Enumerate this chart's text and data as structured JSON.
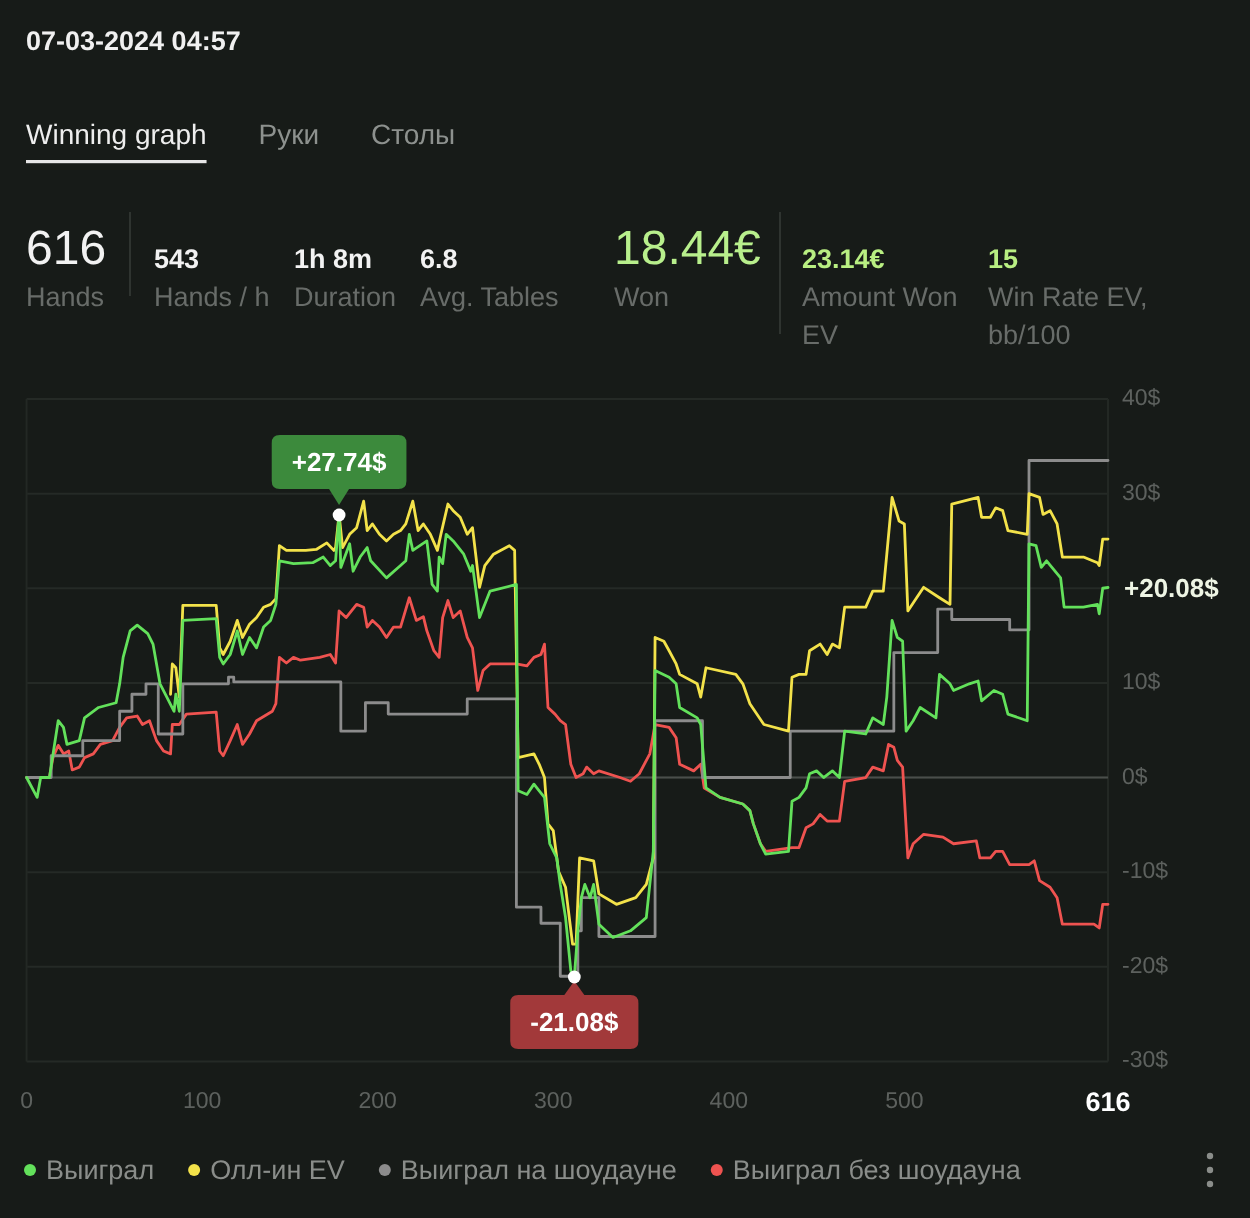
{
  "chart_data": {
    "type": "line",
    "title": "07-03-2024 04:57",
    "annotations": [
      "Winning graph",
      "Руки",
      "Столы",
      "616",
      "Hands",
      "543",
      "Hands / h",
      "1h 8m",
      "Duration",
      "6.8",
      "Avg. Tables",
      "18.44€",
      "Won",
      "23.14€",
      "Amount Won EV",
      "15",
      "Win Rate EV, bb/100",
      {
        "text": "+27.74$",
        "x": 178,
        "y": 27.74
      },
      {
        "text": "-21.08$",
        "x": 312,
        "y": -21.08
      },
      {
        "text": "+20.08$",
        "x": 616,
        "y": 20.08
      }
    ],
    "xlim": [
      0,
      616
    ],
    "xticks": [
      0,
      100,
      200,
      300,
      400,
      500,
      616
    ],
    "ylim": [
      -30,
      40
    ],
    "yticks": [
      {
        "value": -30,
        "label": "-30$"
      },
      {
        "value": -20,
        "label": "-20$"
      },
      {
        "value": -10,
        "label": "-10$"
      },
      {
        "value": 0,
        "label": "0$"
      },
      {
        "value": 10,
        "label": "10$"
      },
      {
        "value": 20,
        "label": null
      },
      {
        "value": 30,
        "label": "30$"
      },
      {
        "value": 40,
        "label": "40$"
      }
    ],
    "grid": "y",
    "legend": "bottom",
    "ref_lines": [
      {
        "axis": "y",
        "value": 0,
        "color": "#4a4e4b"
      }
    ],
    "series": [
      {
        "name": "Выиграл",
        "color": "#63e15b",
        "x": [
          0,
          6,
          8,
          13,
          18,
          21,
          23,
          30,
          33,
          41,
          51,
          53,
          55,
          59,
          63,
          69,
          72,
          76,
          79,
          84,
          85,
          87,
          89,
          108,
          110,
          112,
          116,
          120,
          123,
          127,
          131,
          135,
          139,
          142,
          144,
          152,
          163,
          169,
          173,
          176,
          178,
          179,
          184,
          186,
          190,
          194,
          196,
          205,
          213,
          216,
          218,
          220,
          228,
          231,
          234,
          235,
          237,
          239,
          243,
          249,
          253,
          254,
          256,
          258,
          261,
          264,
          279,
          280,
          285,
          289,
          292,
          295,
          298,
          302,
          304,
          307,
          310,
          312,
          314,
          316,
          318,
          321,
          323,
          326,
          334,
          344,
          353,
          357,
          358,
          366,
          370,
          372,
          382,
          384,
          387,
          395,
          408,
          412,
          414,
          418,
          421,
          434,
          436,
          440,
          444,
          446,
          450,
          454,
          459,
          463,
          466,
          478,
          482,
          488,
          490,
          493,
          496,
          499,
          501,
          505,
          509,
          518,
          520,
          526,
          528,
          537,
          542,
          544,
          551,
          556,
          559,
          570,
          571,
          575,
          578,
          581,
          589,
          591,
          602,
          610,
          611,
          613,
          616
        ],
        "values": [
          0,
          -2.1,
          0,
          0,
          6.0,
          5.3,
          3.5,
          3.9,
          6.3,
          7.4,
          7.9,
          9.9,
          12.7,
          15.5,
          16.1,
          15.2,
          14.1,
          9.9,
          8.8,
          7.0,
          8.8,
          7.0,
          16.6,
          16.8,
          12.7,
          12.0,
          13.0,
          15.5,
          13.0,
          14.8,
          13.7,
          15.9,
          16.6,
          18.3,
          22.9,
          22.6,
          22.7,
          23.3,
          22.4,
          22.9,
          27.74,
          22.2,
          24.7,
          21.8,
          23.3,
          24.3,
          22.9,
          21.1,
          22.4,
          22.9,
          25.7,
          24.0,
          25.0,
          20.4,
          19.7,
          23.3,
          22.6,
          25.7,
          25.0,
          23.6,
          21.8,
          22.4,
          19.7,
          16.9,
          18.3,
          19.7,
          20.4,
          -1.4,
          -1.8,
          -0.7,
          -1.4,
          -2.1,
          -7.0,
          -8.5,
          -11.3,
          -14.8,
          -20.4,
          -21.08,
          -16.2,
          -12.7,
          -11.3,
          -12.7,
          -11.3,
          -15.5,
          -16.9,
          -16.2,
          -14.8,
          -7.8,
          11.3,
          10.6,
          9.9,
          7.4,
          6.3,
          5.6,
          -1.1,
          -2.1,
          -2.8,
          -3.5,
          -4.9,
          -7.0,
          -8.1,
          -7.8,
          -2.5,
          -2.1,
          -1.1,
          0.4,
          0.7,
          0,
          0.7,
          0,
          4.9,
          4.6,
          6.3,
          5.6,
          8.5,
          16.6,
          14.8,
          14.4,
          4.9,
          6.0,
          7.4,
          6.3,
          10.9,
          9.9,
          9.2,
          9.9,
          10.2,
          8.1,
          9.2,
          8.8,
          6.7,
          6.0,
          24.7,
          24.5,
          22.2,
          22.9,
          21.1,
          18.0,
          18.0,
          18.3,
          17.3,
          20.0,
          20.08
        ]
      },
      {
        "name": "Олл-ин EV",
        "color": "#f3e24a",
        "x": [
          82,
          83,
          85,
          87,
          89,
          108,
          110,
          112,
          116,
          120,
          123,
          127,
          131,
          135,
          139,
          142,
          144,
          148,
          159,
          165,
          171,
          175,
          176,
          178,
          180,
          184,
          188,
          192,
          194,
          197,
          201,
          205,
          209,
          213,
          216,
          220,
          223,
          226,
          230,
          234,
          236,
          240,
          243,
          247,
          251,
          254,
          256,
          258,
          261,
          266,
          275,
          278,
          280,
          289,
          292,
          295,
          297,
          300,
          303,
          307,
          311,
          313,
          315,
          323,
          326,
          336,
          347,
          353,
          357,
          358,
          363,
          366,
          370,
          372,
          382,
          384,
          387,
          404,
          408,
          412,
          420,
          434,
          436,
          440,
          444,
          446,
          452,
          456,
          459,
          463,
          466,
          478,
          482,
          488,
          490,
          493,
          497,
          500,
          502,
          507,
          511,
          520,
          526,
          527,
          542,
          544,
          549,
          552,
          556,
          559,
          570,
          571,
          577,
          579,
          583,
          587,
          590,
          602,
          610,
          611,
          613,
          616
        ],
        "values": [
          8.8,
          12.0,
          11.6,
          8.5,
          18.2,
          18.2,
          13.7,
          13.0,
          14.4,
          16.6,
          14.8,
          16.2,
          16.9,
          18.0,
          18.3,
          18.9,
          24.5,
          24.0,
          24.0,
          24.1,
          24.8,
          24.0,
          24.3,
          27.8,
          24.3,
          25.7,
          26.4,
          29.2,
          26.1,
          26.8,
          25.7,
          25.0,
          25.7,
          26.1,
          26.8,
          29.2,
          26.1,
          26.8,
          25.7,
          24.0,
          25.7,
          28.9,
          28.2,
          27.5,
          25.7,
          26.4,
          23.3,
          20.1,
          22.4,
          23.6,
          24.5,
          24.0,
          2.1,
          2.5,
          1.4,
          0,
          -4.9,
          -5.6,
          -9.9,
          -11.6,
          -17.6,
          -17.6,
          -8.5,
          -8.8,
          -12.3,
          -13.4,
          -12.7,
          -11.3,
          -8.5,
          14.8,
          14.4,
          13.4,
          12.0,
          10.9,
          9.9,
          8.5,
          11.6,
          10.9,
          9.9,
          7.8,
          5.6,
          4.9,
          10.6,
          10.9,
          10.9,
          13.4,
          14.1,
          13.0,
          14.1,
          13.7,
          18.0,
          18.0,
          19.7,
          19.7,
          23.6,
          29.6,
          27.1,
          26.8,
          17.6,
          19.0,
          20.1,
          19.0,
          18.3,
          28.9,
          29.6,
          27.5,
          27.5,
          28.5,
          28.2,
          26.1,
          25.7,
          30.0,
          29.6,
          27.8,
          28.2,
          26.8,
          23.3,
          23.3,
          22.7,
          22.4,
          25.2,
          25.2
        ]
      },
      {
        "name": "Выиграл на шоудауне",
        "color": "#8c8c8c",
        "type": "step",
        "x": [
          0,
          14,
          32,
          53,
          60,
          68,
          75,
          89,
          115,
          118,
          179,
          193,
          206,
          251,
          279,
          293,
          304,
          314,
          316,
          326,
          358,
          385,
          435,
          494,
          519,
          527,
          560,
          571,
          616
        ],
        "values": [
          0,
          2.3,
          3.9,
          7.0,
          8.8,
          9.9,
          4.6,
          9.9,
          10.6,
          10.1,
          4.9,
          7.9,
          6.7,
          8.3,
          -13.7,
          -15.4,
          -21.0,
          -16.2,
          -12.7,
          -16.8,
          6.0,
          0,
          4.9,
          13.2,
          17.8,
          16.7,
          15.6,
          33.5,
          33.5
        ]
      },
      {
        "name": "Выиграл без шоудауна",
        "color": "#ef5350",
        "x": [
          0,
          13,
          15,
          18,
          21,
          24,
          26,
          30,
          33,
          38,
          42,
          49,
          53,
          57,
          63,
          66,
          70,
          74,
          78,
          82,
          83,
          87,
          91,
          108,
          110,
          112,
          116,
          120,
          123,
          127,
          131,
          140,
          142,
          144,
          148,
          152,
          156,
          167,
          173,
          176,
          178,
          182,
          188,
          192,
          194,
          197,
          201,
          205,
          209,
          213,
          218,
          222,
          226,
          228,
          232,
          235,
          237,
          240,
          243,
          247,
          251,
          254,
          257,
          260,
          264,
          279,
          285,
          289,
          293,
          295,
          297,
          301,
          304,
          307,
          310,
          313,
          317,
          319,
          323,
          326,
          338,
          344,
          349,
          355,
          358,
          366,
          370,
          372,
          380,
          384,
          386,
          395,
          408,
          412,
          414,
          418,
          421,
          436,
          440,
          444,
          448,
          452,
          456,
          463,
          466,
          478,
          482,
          488,
          491,
          494,
          496,
          499,
          502,
          505,
          511,
          522,
          528,
          541,
          543,
          549,
          552,
          556,
          560,
          571,
          574,
          577,
          583,
          587,
          590,
          608,
          611,
          613,
          616
        ],
        "values": [
          0,
          0,
          2.1,
          3.4,
          2.5,
          2.8,
          0.8,
          1.1,
          2.1,
          2.5,
          3.5,
          3.9,
          5.3,
          6.3,
          6.5,
          5.6,
          6.0,
          3.9,
          2.8,
          2.5,
          5.6,
          5.6,
          6.7,
          6.9,
          2.8,
          2.3,
          3.9,
          5.6,
          3.5,
          4.6,
          6.0,
          7.0,
          7.8,
          12.7,
          12.1,
          12.7,
          12.4,
          12.7,
          13.0,
          12.1,
          17.6,
          16.9,
          18.3,
          18.0,
          15.9,
          16.6,
          15.9,
          14.8,
          15.9,
          15.9,
          19.0,
          16.6,
          17.0,
          15.5,
          13.4,
          12.7,
          16.9,
          18.7,
          16.9,
          17.6,
          14.8,
          13.7,
          9.2,
          11.3,
          12.0,
          12.0,
          11.8,
          12.7,
          13.0,
          14.1,
          7.4,
          6.7,
          6.0,
          5.6,
          1.4,
          0,
          0.4,
          1.1,
          0.4,
          0.7,
          0,
          -0.4,
          0.4,
          2.5,
          5.6,
          5.3,
          4.2,
          1.4,
          0.7,
          1.4,
          -1.1,
          -2.1,
          -2.8,
          -3.5,
          -4.9,
          -7.0,
          -7.8,
          -7.4,
          -7.4,
          -5.3,
          -4.9,
          -3.9,
          -4.6,
          -4.6,
          -0.4,
          0,
          1.1,
          0.7,
          3.5,
          3.2,
          1.8,
          1.1,
          -8.5,
          -7.0,
          -6.0,
          -6.3,
          -7.0,
          -6.7,
          -8.5,
          -8.5,
          -7.8,
          -7.8,
          -9.2,
          -9.2,
          -8.8,
          -10.9,
          -11.6,
          -12.7,
          -15.5,
          -15.5,
          -15.9,
          -13.4,
          -13.4
        ]
      }
    ]
  }
}
